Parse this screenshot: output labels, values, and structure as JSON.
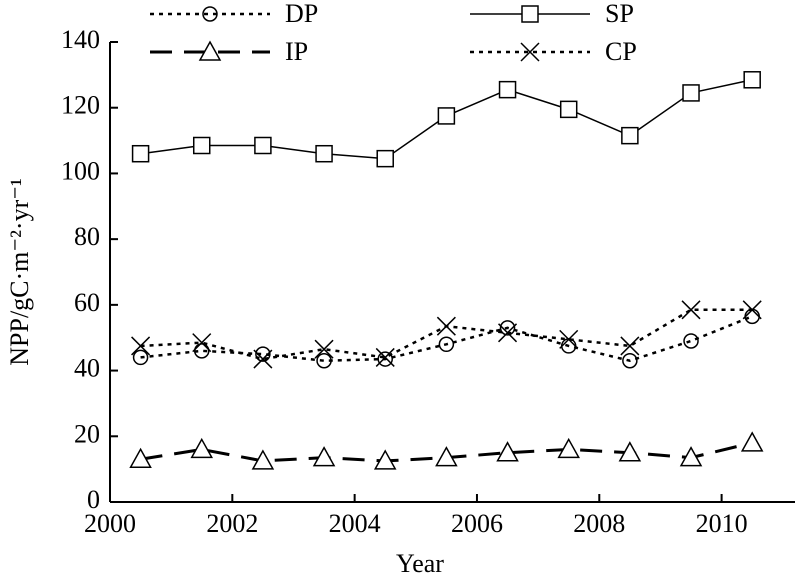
{
  "chart_data": {
    "type": "line",
    "xlabel": "Year",
    "ylabel": "NPP/gC·m⁻²·yr⁻¹",
    "x": [
      2000.5,
      2001.5,
      2002.5,
      2003.5,
      2004.5,
      2005.5,
      2006.5,
      2007.5,
      2008.5,
      2009.5,
      2010.5
    ],
    "xlim": [
      2000,
      2011.2
    ],
    "xticks": [
      2000,
      2002,
      2004,
      2006,
      2008,
      2010
    ],
    "ylim": [
      0,
      140
    ],
    "yticks": [
      0,
      20,
      40,
      60,
      80,
      100,
      120,
      140
    ],
    "series": [
      {
        "name": "DP",
        "color": "#000000",
        "marker": "circle",
        "line_style": "dotted",
        "values": [
          44,
          46,
          45,
          43,
          43.5,
          48,
          53,
          47.5,
          43,
          49,
          56.5
        ]
      },
      {
        "name": "SP",
        "color": "#000000",
        "marker": "square",
        "line_style": "solid",
        "values": [
          106,
          108.5,
          108.5,
          106,
          104.5,
          117.5,
          125.5,
          119.5,
          111.5,
          124.5,
          128.5
        ]
      },
      {
        "name": "IP",
        "color": "#000000",
        "marker": "triangle",
        "line_style": "dashed",
        "values": [
          13,
          16,
          12.5,
          13.5,
          12.5,
          13.5,
          15,
          16,
          15,
          13.5,
          18
        ]
      },
      {
        "name": "CP",
        "color": "#000000",
        "marker": "cross",
        "line_style": "dotted",
        "values": [
          47.5,
          48.5,
          43.5,
          46.5,
          44,
          53.5,
          51.5,
          49.5,
          47.5,
          58.5,
          58.5
        ]
      }
    ]
  }
}
